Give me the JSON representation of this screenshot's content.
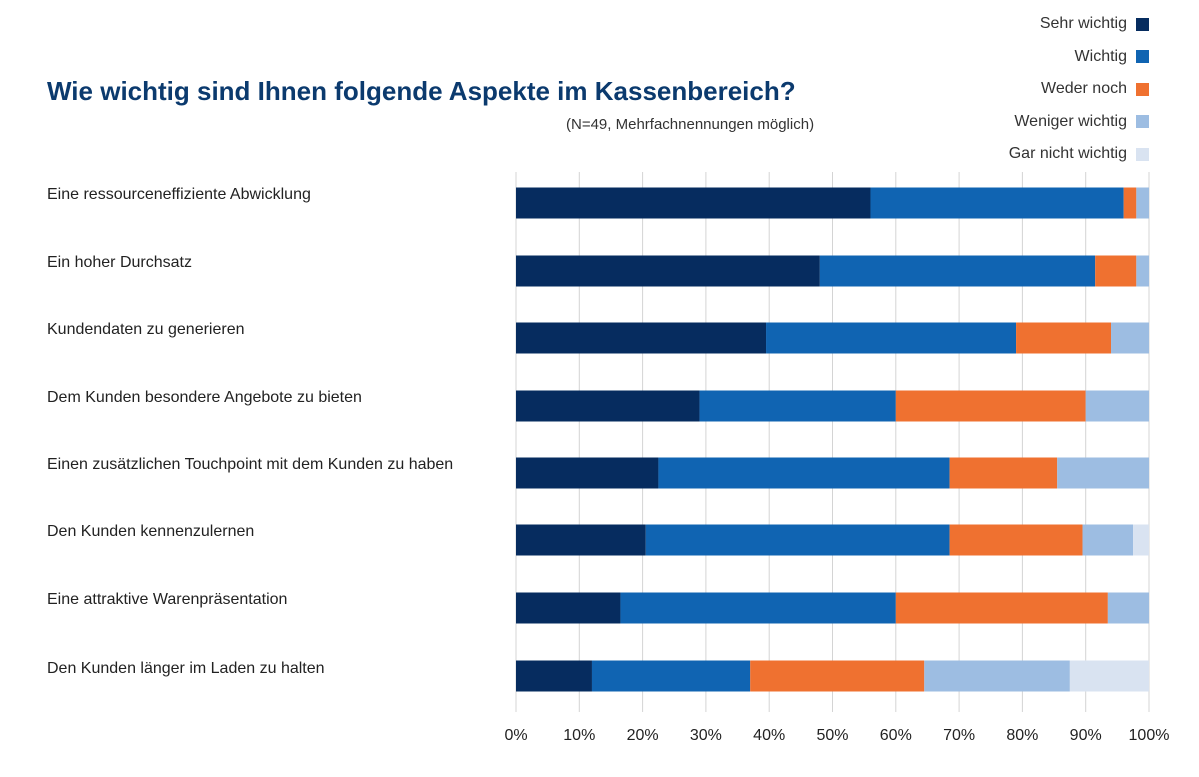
{
  "chart_data": {
    "type": "bar",
    "orientation": "horizontal",
    "stacked": true,
    "title": "Wie wichtig sind Ihnen folgende Aspekte im Kassenbereich?",
    "subtitle": "(N=49, Mehrfachnennungen möglich)",
    "categories": [
      "Eine ressourceneffiziente Abwicklung",
      "Ein hoher Durchsatz",
      "Kundendaten zu generieren",
      "Dem Kunden besondere Angebote zu bieten",
      "Einen zusätzlichen Touchpoint mit dem Kunden zu haben",
      "Den Kunden kennenzulernen",
      "Eine attraktive Warenpräsentation",
      "Den Kunden länger im Laden zu halten"
    ],
    "series": [
      {
        "name": "Sehr wichtig",
        "color": "#062c5f",
        "values": [
          56,
          48,
          39.5,
          29,
          22.5,
          20.5,
          16.5,
          12
        ]
      },
      {
        "name": "Wichtig",
        "color": "#1064b2",
        "values": [
          40,
          43.5,
          39.5,
          31,
          46,
          48,
          43.5,
          25
        ]
      },
      {
        "name": "Weder noch",
        "color": "#ef7130",
        "values": [
          2,
          6.5,
          15,
          30,
          17,
          21,
          33.5,
          27.5
        ]
      },
      {
        "name": "Weniger wichtig",
        "color": "#9dbde2",
        "values": [
          2,
          2,
          6,
          10,
          14.5,
          8,
          6.5,
          23
        ]
      },
      {
        "name": "Gar nicht wichtig",
        "color": "#d9e3f1",
        "values": [
          0,
          0,
          0,
          0,
          0,
          2.5,
          0,
          12.5
        ]
      }
    ],
    "xlim": [
      0,
      100
    ],
    "xticks": [
      "0%",
      "10%",
      "20%",
      "30%",
      "40%",
      "50%",
      "60%",
      "70%",
      "80%",
      "90%",
      "100%"
    ],
    "grid": true,
    "legend_position": "top-right"
  }
}
